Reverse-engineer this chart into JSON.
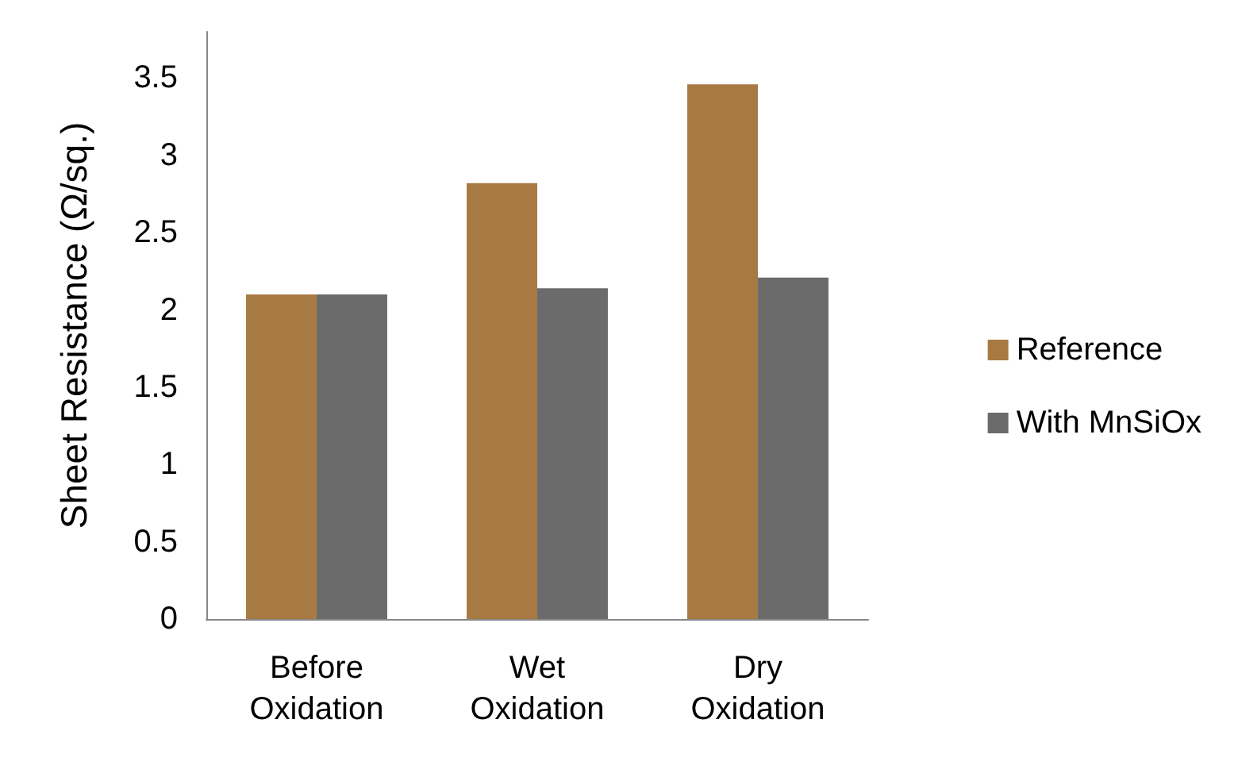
{
  "chart_data": {
    "type": "bar",
    "ylabel": "Sheet Resistance (Ω/sq.)",
    "categories": [
      "Before Oxidation",
      "Wet Oxidation",
      "Dry Oxidation"
    ],
    "series": [
      {
        "name": "Reference",
        "color": "#a87a43",
        "values": [
          2.1,
          2.82,
          3.46
        ]
      },
      {
        "name": "With MnSiOx",
        "color": "#6b6b6b",
        "values": [
          2.1,
          2.14,
          2.21
        ]
      }
    ],
    "ylim": [
      0,
      3.8
    ],
    "yticks": [
      0,
      0.5,
      1,
      1.5,
      2,
      2.5,
      3,
      3.5
    ],
    "grid": false,
    "legend": "right"
  }
}
